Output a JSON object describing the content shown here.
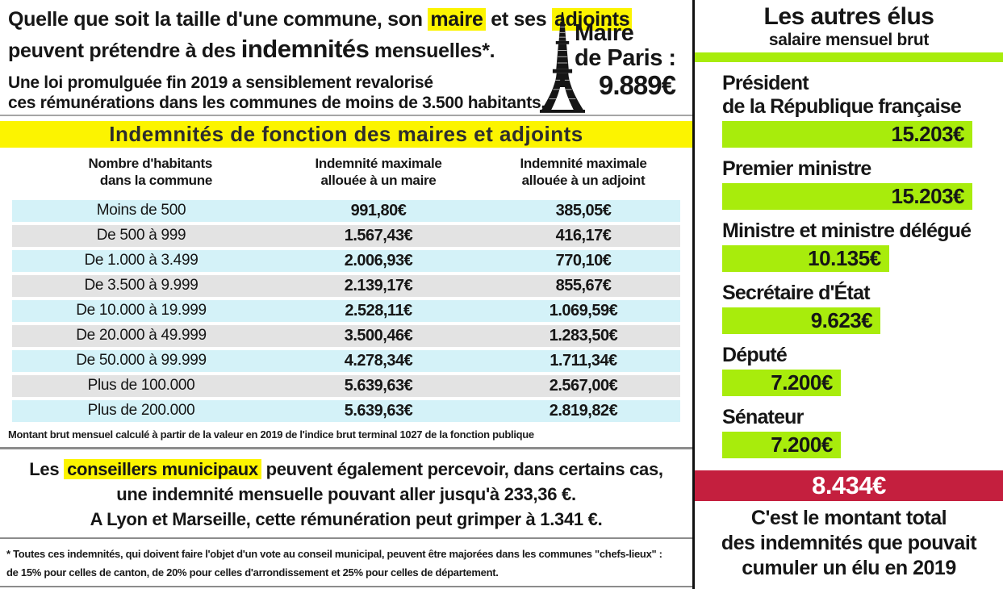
{
  "intro": {
    "l1_a": "Quelle que soit la taille d'une commune, son",
    "l1_hl1": "maire",
    "l1_b": "et ses",
    "l1_hl2": "adjoints",
    "l2_a": "peuvent prétendre à des",
    "l2_big": "indemnités",
    "l2_b": "mensuelles*.",
    "law_line1": "Une loi promulguée fin 2019 a sensiblement revalorisé",
    "law_line2": "ces rémunérations dans les communes de moins de 3.500 habitants."
  },
  "paris": {
    "label_line1": "Maire",
    "label_line2": "de Paris :",
    "value": "9.889€"
  },
  "table": {
    "title": "Indemnités de fonction des maires et adjoints",
    "headers": {
      "col1": [
        "Nombre d'habitants",
        "dans la commune"
      ],
      "col2": [
        "Indemnité maximale",
        "allouée à un maire"
      ],
      "col3": [
        "Indemnité maximale",
        "allouée à un adjoint"
      ]
    },
    "rows": [
      [
        "Moins de 500",
        "991,80€",
        "385,05€"
      ],
      [
        "De 500 à 999",
        "1.567,43€",
        "416,17€"
      ],
      [
        "De 1.000 à 3.499",
        "2.006,93€",
        "770,10€"
      ],
      [
        "De 3.500 à 9.999",
        "2.139,17€",
        "855,67€"
      ],
      [
        "De 10.000 à 19.999",
        "2.528,11€",
        "1.069,59€"
      ],
      [
        "De 20.000 à 49.999",
        "3.500,46€",
        "1.283,50€"
      ],
      [
        "De 50.000 à 99.999",
        "4.278,34€",
        "1.711,34€"
      ],
      [
        "Plus de 100.000",
        "5.639,63€",
        "2.567,00€"
      ],
      [
        "Plus de 200.000",
        "5.639,63€",
        "2.819,82€"
      ]
    ],
    "footnote": "Montant brut mensuel calculé à partir de la valeur en 2019 de l'indice brut terminal 1027 de la fonction publique"
  },
  "conseillers": {
    "l1_a": "Les",
    "l1_hl": "conseillers municipaux",
    "l1_b": "peuvent également percevoir, dans certains cas,",
    "l2_a": "une indemnité mensuelle pouvant aller jusqu'à",
    "l2_v": "233,36 €",
    "l2_b": ".",
    "l3_a": "A Lyon et Marseille, cette rémunération peut grimper à",
    "l3_v": "1.341 €",
    "l3_b": "."
  },
  "footnote": {
    "line1": "* Toutes ces indemnités, qui doivent faire l'objet d'un vote au conseil municipal, peuvent être majorées dans les communes \"chefs-lieux\" :",
    "line2": "de 15% pour celles de canton, de 20% pour celles d'arrondissement et 25% pour celles de département."
  },
  "sidebar": {
    "title": "Les autres élus",
    "subtitle": "salaire mensuel brut",
    "max_amount": 15203,
    "entries": [
      {
        "label_lines": [
          "Président",
          "de la République française"
        ],
        "value": "15.203€",
        "amount": 15203
      },
      {
        "label_lines": [
          "Premier ministre"
        ],
        "value": "15.203€",
        "amount": 15203
      },
      {
        "label_lines": [
          "Ministre et ministre délégué"
        ],
        "value": "10.135€",
        "amount": 10135
      },
      {
        "label_lines": [
          "Secrétaire d'État"
        ],
        "value": "9.623€",
        "amount": 9623
      },
      {
        "label_lines": [
          "Député"
        ],
        "value": "7.200€",
        "amount": 7200
      },
      {
        "label_lines": [
          "Sénateur"
        ],
        "value": "7.200€",
        "amount": 7200
      }
    ],
    "total": {
      "value": "8.434€",
      "caption_lines": [
        "C'est le montant total",
        "des indemnités que pouvait",
        "cumuler un élu en 2019"
      ]
    }
  },
  "colors": {
    "yellow": "#fcf400",
    "row-cyan": "#d4f2f8",
    "row-gray": "#e3e3e3",
    "green": "#a8ec0c",
    "red": "#c41f3e"
  },
  "chart_data": [
    {
      "type": "table",
      "title": "Indemnités de fonction des maires et adjoints",
      "columns": [
        "Nombre d'habitants dans la commune",
        "Indemnité maximale allouée à un maire",
        "Indemnité maximale allouée à un adjoint"
      ],
      "rows": [
        [
          "Moins de 500",
          "991,80€",
          "385,05€"
        ],
        [
          "De 500 à 999",
          "1.567,43€",
          "416,17€"
        ],
        [
          "De 1.000 à 3.499",
          "2.006,93€",
          "770,10€"
        ],
        [
          "De 3.500 à 9.999",
          "2.139,17€",
          "855,67€"
        ],
        [
          "De 10.000 à 19.999",
          "2.528,11€",
          "1.069,59€"
        ],
        [
          "De 20.000 à 49.999",
          "3.500,46€",
          "1.283,50€"
        ],
        [
          "De 50.000 à 99.999",
          "4.278,34€",
          "1.711,34€"
        ],
        [
          "Plus de 100.000",
          "5.639,63€",
          "2.567,00€"
        ],
        [
          "Plus de 200.000",
          "5.639,63€",
          "2.819,82€"
        ]
      ],
      "footnote": "Montant brut mensuel calculé à partir de la valeur en 2019 de l'indice brut terminal 1027 de la fonction publique"
    },
    {
      "type": "bar",
      "orientation": "horizontal",
      "title": "Les autres élus",
      "subtitle": "salaire mensuel brut",
      "categories": [
        "Président de la République française",
        "Premier ministre",
        "Ministre et ministre délégué",
        "Secrétaire d'État",
        "Député",
        "Sénateur"
      ],
      "values": [
        15203,
        15203,
        10135,
        9623,
        7200,
        7200
      ],
      "unit": "€",
      "xlim": [
        0,
        15203
      ],
      "annotations": [
        "Maire de Paris : 9.889€",
        "8.434€ — C'est le montant total des indemnités que pouvait cumuler un élu en 2019"
      ]
    }
  ]
}
